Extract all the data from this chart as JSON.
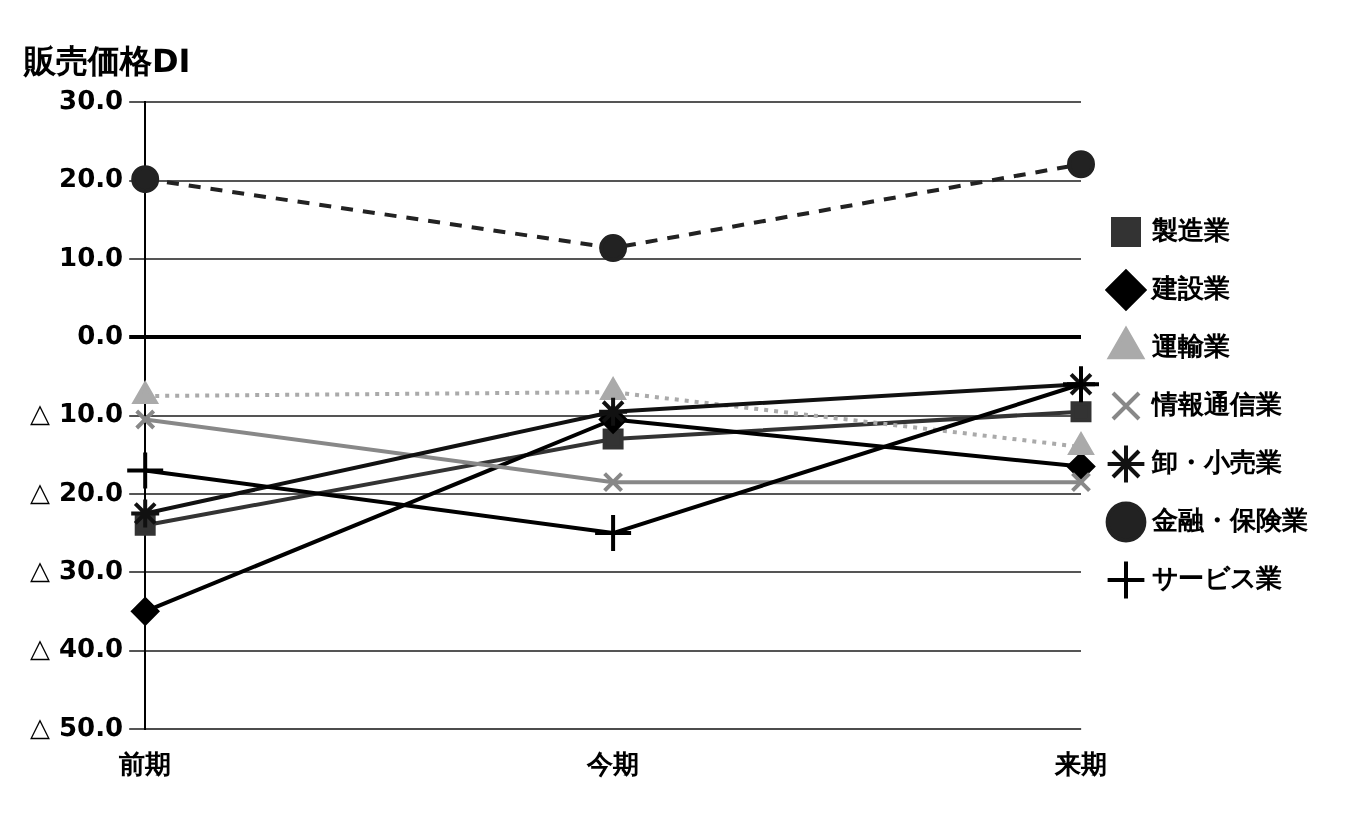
{
  "chart_data": {
    "type": "line",
    "title": "販売価格DI",
    "categories": [
      "前期",
      "今期",
      "来期"
    ],
    "series": [
      {
        "name": "製造業",
        "color": "#333333",
        "values": [
          -24,
          -13,
          -9.5
        ],
        "marker": "square",
        "line_style": "solid"
      },
      {
        "name": "建設業",
        "color": "#000000",
        "values": [
          -35,
          -10.5,
          -16.5
        ],
        "marker": "diamond",
        "line_style": "solid"
      },
      {
        "name": "運輸業",
        "color": "#aaaaaa",
        "values": [
          -7.5,
          -7,
          -14
        ],
        "marker": "triangle",
        "line_style": "dotted"
      },
      {
        "name": "情報通信業",
        "color": "#888888",
        "values": [
          -10.5,
          -18.5,
          -18.5
        ],
        "marker": "cross",
        "line_style": "solid"
      },
      {
        "name": "卸・小売業",
        "color": "#111111",
        "values": [
          -22.5,
          -9.5,
          -6
        ],
        "marker": "cross",
        "line_style": "solid"
      },
      {
        "name": "金融・保険業",
        "color": "#222222",
        "values": [
          20.2,
          11.4,
          22.1
        ],
        "marker": "circle",
        "line_style": "dashed"
      },
      {
        "name": "サービス業",
        "color": "#000000",
        "values": [
          -17,
          -25,
          -6
        ],
        "marker": "cross",
        "line_style": "solid"
      }
    ],
    "ylim": [
      -50,
      30
    ],
    "yticks": [
      {
        "value": 30,
        "label": "30.0"
      },
      {
        "value": 20,
        "label": "20.0"
      },
      {
        "value": 10,
        "label": "10.0"
      },
      {
        "value": 0,
        "label": "0.0"
      },
      {
        "value": -10,
        "label": "△ 10.0"
      },
      {
        "value": -20,
        "label": "△ 20.0"
      },
      {
        "value": -30,
        "label": "△ 30.0"
      },
      {
        "value": -40,
        "label": "△ 40.0"
      },
      {
        "value": -50,
        "label": "△ 50.0"
      }
    ],
    "grid": "y",
    "legend": "right"
  }
}
